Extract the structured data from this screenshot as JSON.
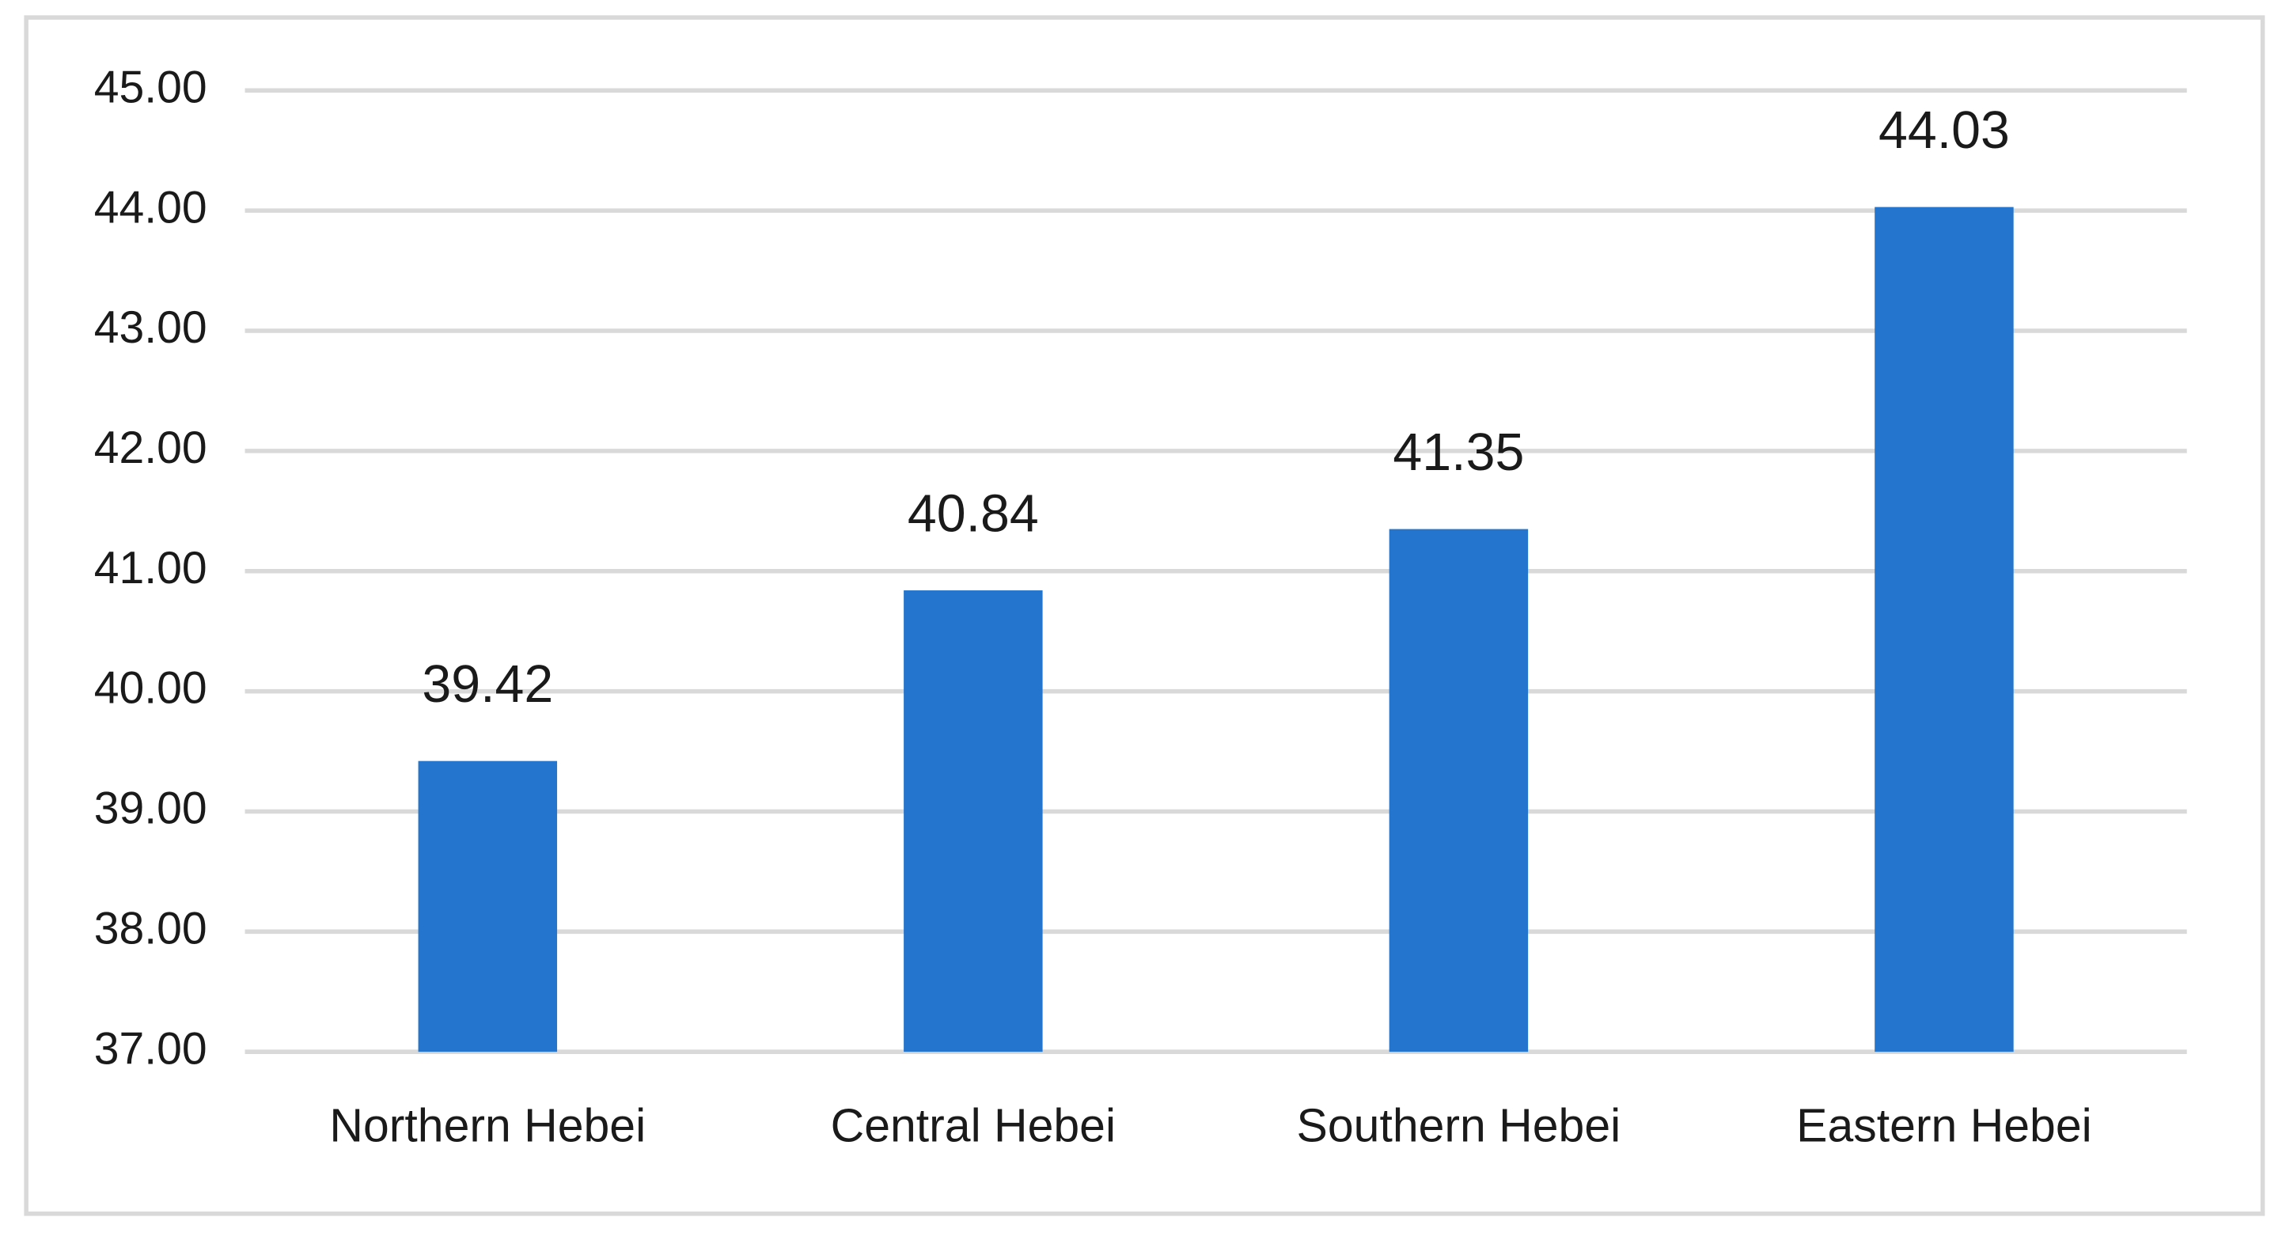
{
  "chart_data": {
    "type": "bar",
    "categories": [
      "Northern Hebei",
      "Central Hebei",
      "Southern Hebei",
      "Eastern Hebei"
    ],
    "values": [
      39.42,
      40.84,
      41.35,
      44.03
    ],
    "color": "#2475cd",
    "ylim": [
      37,
      45
    ],
    "yticks": [
      {
        "value": 37,
        "label": "37.00"
      },
      {
        "value": 38,
        "label": "38.00"
      },
      {
        "value": 39,
        "label": "39.00"
      },
      {
        "value": 40,
        "label": "40.00"
      },
      {
        "value": 41,
        "label": "41.00"
      },
      {
        "value": 42,
        "label": "42.00"
      },
      {
        "value": 43,
        "label": "43.00"
      },
      {
        "value": 44,
        "label": "44.00"
      },
      {
        "value": 45,
        "label": "45.00"
      }
    ],
    "grid": true
  }
}
